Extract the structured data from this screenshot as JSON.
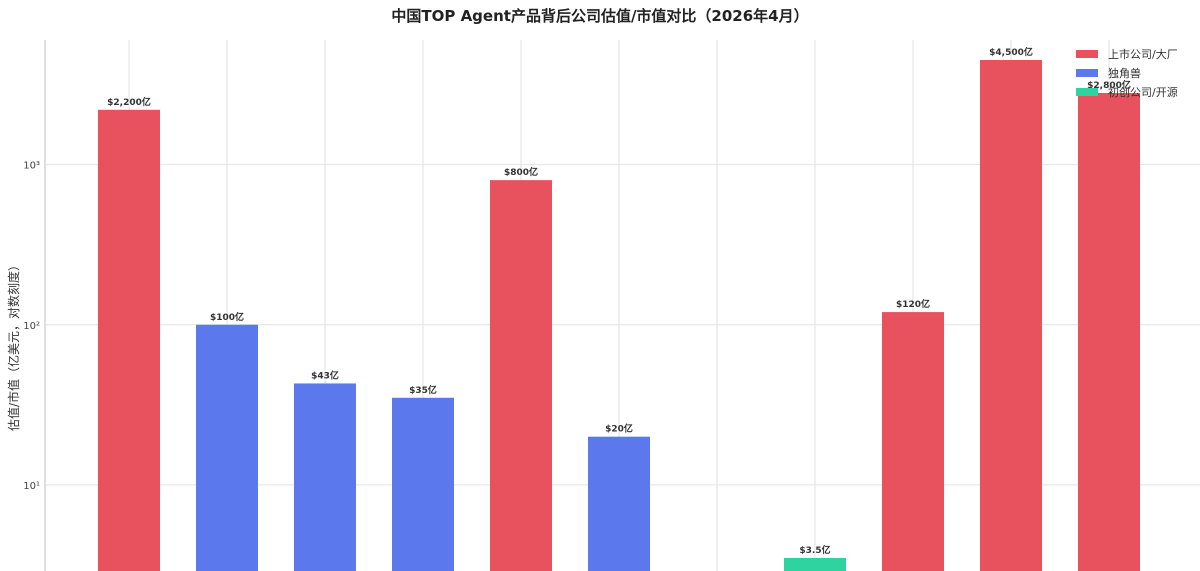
{
  "chart_data": {
    "type": "bar",
    "title": "中国TOP Agent产品背后公司估值/市值对比（2026年4月）",
    "xlabel": "",
    "ylabel": "估值/市值（亿美元，对数刻度）",
    "y_scale": "log",
    "ylim": [
      2.9,
      6000
    ],
    "y_ticks": [
      {
        "value": 10,
        "label": "10¹"
      },
      {
        "value": 100,
        "label": "10²"
      },
      {
        "value": 1000,
        "label": "10³"
      }
    ],
    "grid": true,
    "legend_position": "top-right",
    "legend": [
      {
        "label": "上市公司/大厂",
        "color": "#e8525e"
      },
      {
        "label": "独角兽",
        "color": "#5b78ec"
      },
      {
        "label": "初创公司/开源",
        "color": "#2ed39f"
      }
    ],
    "bars": [
      {
        "value": 2200,
        "label": "$2,200亿",
        "group": 0
      },
      {
        "value": 100,
        "label": "$100亿",
        "group": 1
      },
      {
        "value": 43,
        "label": "$43亿",
        "group": 1
      },
      {
        "value": 35,
        "label": "$35亿",
        "group": 1
      },
      {
        "value": 800,
        "label": "$800亿",
        "group": 0
      },
      {
        "value": 20,
        "label": "$20亿",
        "group": 1
      },
      {
        "value": null,
        "label": "",
        "group": 2
      },
      {
        "value": 3.5,
        "label": "$3.5亿",
        "group": 2
      },
      {
        "value": 120,
        "label": "$120亿",
        "group": 0
      },
      {
        "value": 4500,
        "label": "$4,500亿",
        "group": 0
      },
      {
        "value": 2800,
        "label": "$2,800亿",
        "group": 0
      }
    ]
  }
}
